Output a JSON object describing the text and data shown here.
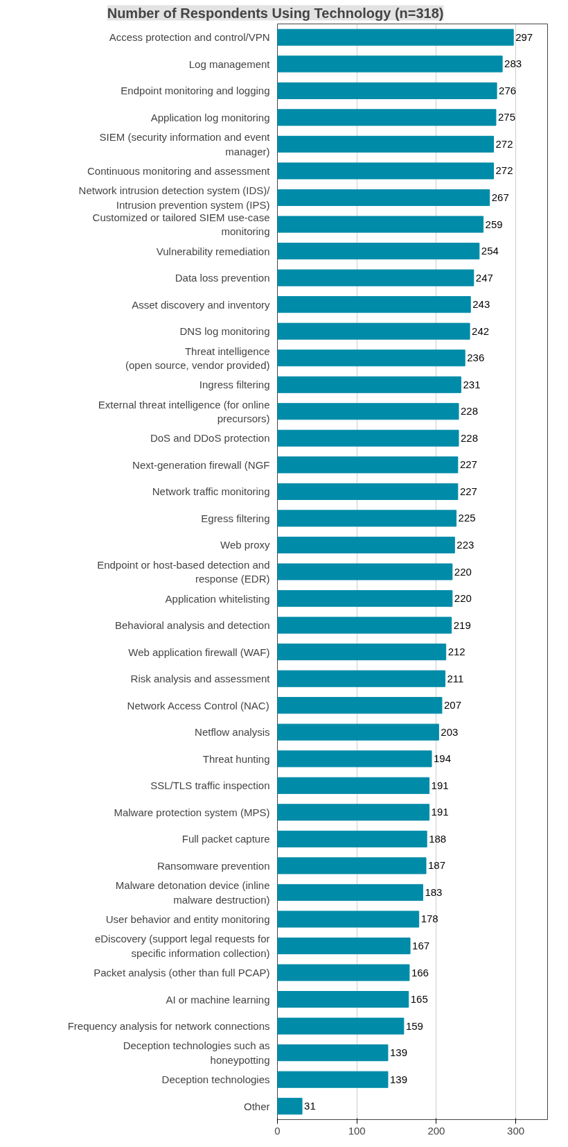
{
  "chart_data": {
    "type": "bar",
    "orientation": "horizontal",
    "title": "Number of Respondents Using Technology (n=318)",
    "categories": [
      "Access protection and control/VPN",
      "Log management",
      "Endpoint monitoring and logging",
      "Application log monitoring",
      "SIEM (security information and event\nmanager)",
      "Continuous monitoring and assessment",
      "Network intrusion detection system (IDS)/\nIntrusion prevention system (IPS)",
      "Customized or tailored SIEM use-case\nmonitoring",
      "Vulnerability remediation",
      "Data loss prevention",
      "Asset discovery and inventory",
      "DNS log monitoring",
      "Threat intelligence\n(open source, vendor provided)",
      "Ingress filtering",
      "External threat intelligence (for online\nprecursors)",
      "DoS and DDoS protection",
      "Next-generation firewall (NGF",
      "Network traffic monitoring",
      "Egress filtering",
      "Web proxy",
      "Endpoint or host-based detection and\nresponse (EDR)",
      "Application whitelisting",
      "Behavioral analysis and detection",
      "Web application firewall (WAF)",
      "Risk analysis and assessment",
      "Network Access Control (NAC)",
      "Netflow analysis",
      "Threat hunting",
      "SSL/TLS traffic inspection",
      "Malware protection system (MPS)",
      "Full packet capture",
      "Ransomware prevention",
      "Malware detonation device (inline\nmalware destruction)",
      "User behavior and entity monitoring",
      "eDiscovery (support legal requests for\nspecific information collection)",
      "Packet analysis (other than full PCAP)",
      "AI or machine learning",
      "Frequency analysis for network connections",
      "Deception technologies such as\nhoneypotting",
      "Deception technologies",
      "Other"
    ],
    "values": [
      297,
      283,
      276,
      275,
      272,
      272,
      267,
      259,
      254,
      247,
      243,
      242,
      236,
      231,
      228,
      228,
      227,
      227,
      225,
      223,
      220,
      220,
      219,
      212,
      211,
      207,
      203,
      194,
      191,
      191,
      188,
      187,
      183,
      178,
      167,
      166,
      165,
      159,
      139,
      139,
      31
    ],
    "color": "#008ba8",
    "xlim": [
      0,
      340
    ],
    "xticks": [
      0,
      100,
      200,
      300
    ],
    "grid": "x",
    "data_labels": true
  }
}
